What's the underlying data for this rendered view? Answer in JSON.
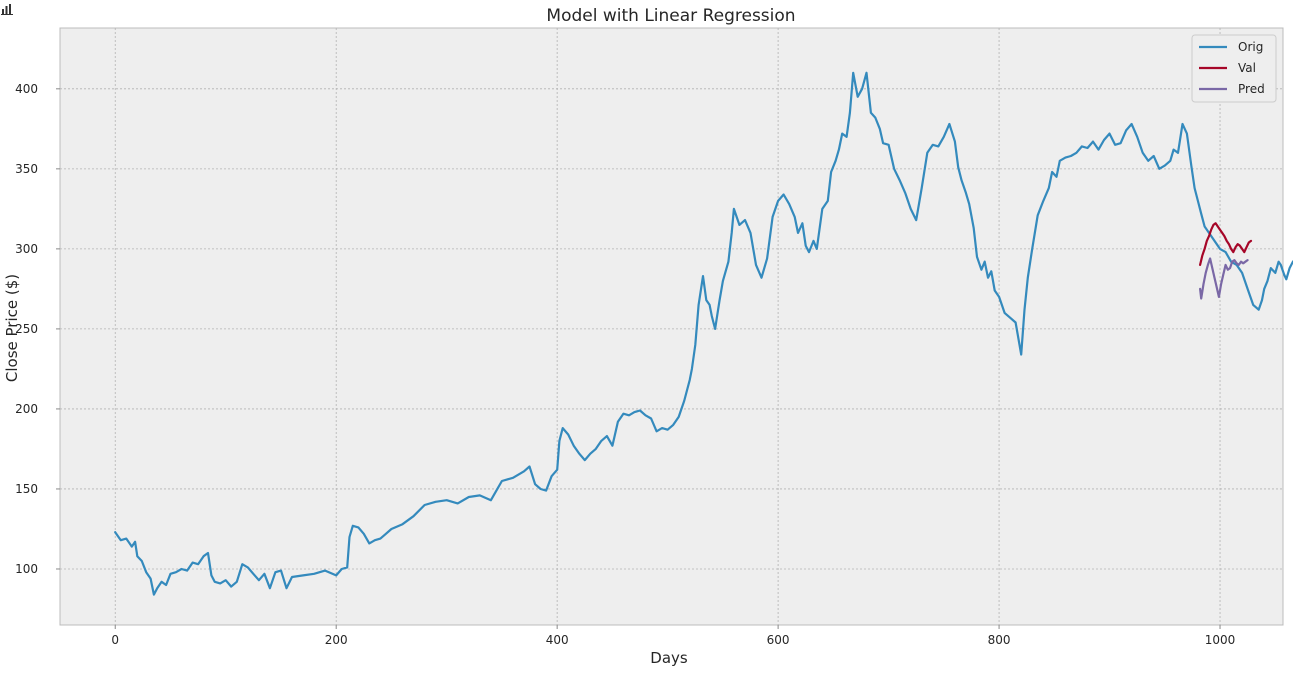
{
  "chart_data": {
    "type": "line",
    "title": "Model with Linear Regression",
    "xlabel": "Days",
    "ylabel": "Close Price ($)",
    "xlim": [
      -50,
      1057
    ],
    "ylim": [
      65,
      438
    ],
    "xticks": [
      0,
      200,
      400,
      600,
      800,
      1000
    ],
    "yticks": [
      100,
      150,
      200,
      250,
      300,
      350,
      400
    ],
    "grid": true,
    "legend_position": "top-right",
    "series": [
      {
        "name": "Orig",
        "color": "#348abd",
        "points": [
          [
            0,
            123
          ],
          [
            5,
            118
          ],
          [
            10,
            119
          ],
          [
            15,
            114
          ],
          [
            18,
            117
          ],
          [
            20,
            108
          ],
          [
            24,
            105
          ],
          [
            28,
            98
          ],
          [
            32,
            94
          ],
          [
            35,
            84
          ],
          [
            38,
            88
          ],
          [
            42,
            92
          ],
          [
            46,
            90
          ],
          [
            50,
            97
          ],
          [
            55,
            98
          ],
          [
            60,
            100
          ],
          [
            65,
            99
          ],
          [
            70,
            104
          ],
          [
            75,
            103
          ],
          [
            80,
            108
          ],
          [
            84,
            110
          ],
          [
            87,
            96
          ],
          [
            90,
            92
          ],
          [
            95,
            91
          ],
          [
            100,
            93
          ],
          [
            105,
            89
          ],
          [
            110,
            92
          ],
          [
            115,
            103
          ],
          [
            120,
            101
          ],
          [
            125,
            97
          ],
          [
            130,
            93
          ],
          [
            135,
            97
          ],
          [
            140,
            88
          ],
          [
            145,
            98
          ],
          [
            150,
            99
          ],
          [
            155,
            88
          ],
          [
            160,
            95
          ],
          [
            170,
            96
          ],
          [
            180,
            97
          ],
          [
            190,
            99
          ],
          [
            200,
            96
          ],
          [
            205,
            100
          ],
          [
            210,
            101
          ],
          [
            212,
            120
          ],
          [
            215,
            127
          ],
          [
            220,
            126
          ],
          [
            225,
            122
          ],
          [
            230,
            116
          ],
          [
            235,
            118
          ],
          [
            240,
            119
          ],
          [
            245,
            122
          ],
          [
            250,
            125
          ],
          [
            260,
            128
          ],
          [
            270,
            133
          ],
          [
            280,
            140
          ],
          [
            290,
            142
          ],
          [
            300,
            143
          ],
          [
            310,
            141
          ],
          [
            320,
            145
          ],
          [
            330,
            146
          ],
          [
            340,
            143
          ],
          [
            345,
            149
          ],
          [
            350,
            155
          ],
          [
            360,
            157
          ],
          [
            370,
            161
          ],
          [
            375,
            164
          ],
          [
            380,
            153
          ],
          [
            385,
            150
          ],
          [
            390,
            149
          ],
          [
            395,
            158
          ],
          [
            400,
            162
          ],
          [
            402,
            180
          ],
          [
            405,
            188
          ],
          [
            410,
            184
          ],
          [
            415,
            177
          ],
          [
            420,
            172
          ],
          [
            425,
            168
          ],
          [
            430,
            172
          ],
          [
            435,
            175
          ],
          [
            440,
            180
          ],
          [
            445,
            183
          ],
          [
            450,
            177
          ],
          [
            455,
            192
          ],
          [
            460,
            197
          ],
          [
            465,
            196
          ],
          [
            470,
            198
          ],
          [
            475,
            199
          ],
          [
            480,
            196
          ],
          [
            485,
            194
          ],
          [
            490,
            186
          ],
          [
            495,
            188
          ],
          [
            500,
            187
          ],
          [
            505,
            190
          ],
          [
            510,
            195
          ],
          [
            515,
            205
          ],
          [
            520,
            218
          ],
          [
            522,
            225
          ],
          [
            525,
            240
          ],
          [
            528,
            265
          ],
          [
            532,
            283
          ],
          [
            535,
            268
          ],
          [
            538,
            265
          ],
          [
            540,
            258
          ],
          [
            543,
            250
          ],
          [
            547,
            268
          ],
          [
            550,
            280
          ],
          [
            555,
            292
          ],
          [
            558,
            310
          ],
          [
            560,
            325
          ],
          [
            565,
            315
          ],
          [
            570,
            318
          ],
          [
            575,
            310
          ],
          [
            580,
            290
          ],
          [
            585,
            282
          ],
          [
            590,
            294
          ],
          [
            595,
            320
          ],
          [
            600,
            330
          ],
          [
            605,
            334
          ],
          [
            610,
            328
          ],
          [
            615,
            320
          ],
          [
            618,
            310
          ],
          [
            622,
            316
          ],
          [
            625,
            302
          ],
          [
            628,
            298
          ],
          [
            632,
            305
          ],
          [
            635,
            300
          ],
          [
            640,
            325
          ],
          [
            645,
            330
          ],
          [
            648,
            348
          ],
          [
            652,
            355
          ],
          [
            655,
            362
          ],
          [
            658,
            372
          ],
          [
            662,
            370
          ],
          [
            665,
            385
          ],
          [
            668,
            410
          ],
          [
            672,
            395
          ],
          [
            676,
            400
          ],
          [
            680,
            410
          ],
          [
            684,
            385
          ],
          [
            688,
            382
          ],
          [
            692,
            375
          ],
          [
            695,
            366
          ],
          [
            700,
            365
          ],
          [
            705,
            350
          ],
          [
            710,
            343
          ],
          [
            715,
            335
          ],
          [
            720,
            325
          ],
          [
            725,
            318
          ],
          [
            730,
            338
          ],
          [
            735,
            360
          ],
          [
            740,
            365
          ],
          [
            745,
            364
          ],
          [
            750,
            370
          ],
          [
            755,
            378
          ],
          [
            760,
            367
          ],
          [
            763,
            351
          ],
          [
            766,
            343
          ],
          [
            770,
            335
          ],
          [
            773,
            328
          ],
          [
            777,
            313
          ],
          [
            780,
            295
          ],
          [
            784,
            287
          ],
          [
            787,
            292
          ],
          [
            790,
            282
          ],
          [
            793,
            286
          ],
          [
            796,
            274
          ],
          [
            800,
            270
          ],
          [
            805,
            260
          ],
          [
            810,
            257
          ],
          [
            815,
            254
          ],
          [
            820,
            234
          ],
          [
            823,
            262
          ],
          [
            826,
            282
          ],
          [
            830,
            300
          ],
          [
            835,
            321
          ],
          [
            840,
            330
          ],
          [
            845,
            338
          ],
          [
            848,
            348
          ],
          [
            852,
            345
          ],
          [
            855,
            355
          ],
          [
            860,
            357
          ],
          [
            865,
            358
          ],
          [
            870,
            360
          ],
          [
            875,
            364
          ],
          [
            880,
            363
          ],
          [
            885,
            367
          ],
          [
            890,
            362
          ],
          [
            895,
            368
          ],
          [
            900,
            372
          ],
          [
            905,
            365
          ],
          [
            910,
            366
          ],
          [
            915,
            374
          ],
          [
            920,
            378
          ],
          [
            925,
            370
          ],
          [
            930,
            360
          ],
          [
            935,
            355
          ],
          [
            940,
            358
          ],
          [
            945,
            350
          ],
          [
            950,
            352
          ],
          [
            955,
            355
          ],
          [
            958,
            362
          ],
          [
            962,
            360
          ],
          [
            966,
            378
          ],
          [
            970,
            372
          ],
          [
            974,
            352
          ],
          [
            977,
            338
          ],
          [
            980,
            330
          ],
          [
            983,
            322
          ],
          [
            986,
            314
          ],
          [
            990,
            310
          ],
          [
            995,
            305
          ],
          [
            1000,
            300
          ],
          [
            1005,
            298
          ],
          [
            1010,
            292
          ],
          [
            1015,
            290
          ],
          [
            1020,
            285
          ],
          [
            1025,
            275
          ],
          [
            1030,
            265
          ],
          [
            1035,
            262
          ],
          [
            1038,
            268
          ],
          [
            1040,
            275
          ],
          [
            1043,
            280
          ],
          [
            1046,
            288
          ],
          [
            1050,
            285
          ],
          [
            1053,
            292
          ],
          [
            1055,
            290
          ],
          [
            1058,
            284
          ],
          [
            1060,
            281
          ],
          [
            1063,
            288
          ],
          [
            1066,
            292
          ],
          [
            1070,
            295
          ]
        ]
      },
      {
        "name": "Val",
        "color": "#a60628",
        "points": [
          [
            982,
            290
          ],
          [
            984,
            296
          ],
          [
            986,
            300
          ],
          [
            988,
            305
          ],
          [
            990,
            308
          ],
          [
            992,
            312
          ],
          [
            994,
            315
          ],
          [
            996,
            316
          ],
          [
            998,
            314
          ],
          [
            1000,
            312
          ],
          [
            1002,
            310
          ],
          [
            1004,
            308
          ],
          [
            1006,
            305
          ],
          [
            1008,
            303
          ],
          [
            1010,
            300
          ],
          [
            1012,
            298
          ],
          [
            1014,
            301
          ],
          [
            1016,
            303
          ],
          [
            1018,
            302
          ],
          [
            1020,
            300
          ],
          [
            1022,
            298
          ],
          [
            1024,
            301
          ],
          [
            1026,
            304
          ],
          [
            1028,
            305
          ]
        ]
      },
      {
        "name": "Pred",
        "color": "#7a68a6",
        "points": [
          [
            982,
            275
          ],
          [
            983,
            269
          ],
          [
            985,
            278
          ],
          [
            987,
            285
          ],
          [
            989,
            290
          ],
          [
            991,
            294
          ],
          [
            993,
            288
          ],
          [
            995,
            282
          ],
          [
            997,
            276
          ],
          [
            999,
            270
          ],
          [
            1001,
            278
          ],
          [
            1003,
            284
          ],
          [
            1005,
            290
          ],
          [
            1007,
            287
          ],
          [
            1009,
            288
          ],
          [
            1011,
            292
          ],
          [
            1013,
            293
          ],
          [
            1015,
            291
          ],
          [
            1017,
            290
          ],
          [
            1019,
            292
          ],
          [
            1021,
            291
          ],
          [
            1023,
            292
          ],
          [
            1025,
            293
          ]
        ]
      }
    ]
  }
}
